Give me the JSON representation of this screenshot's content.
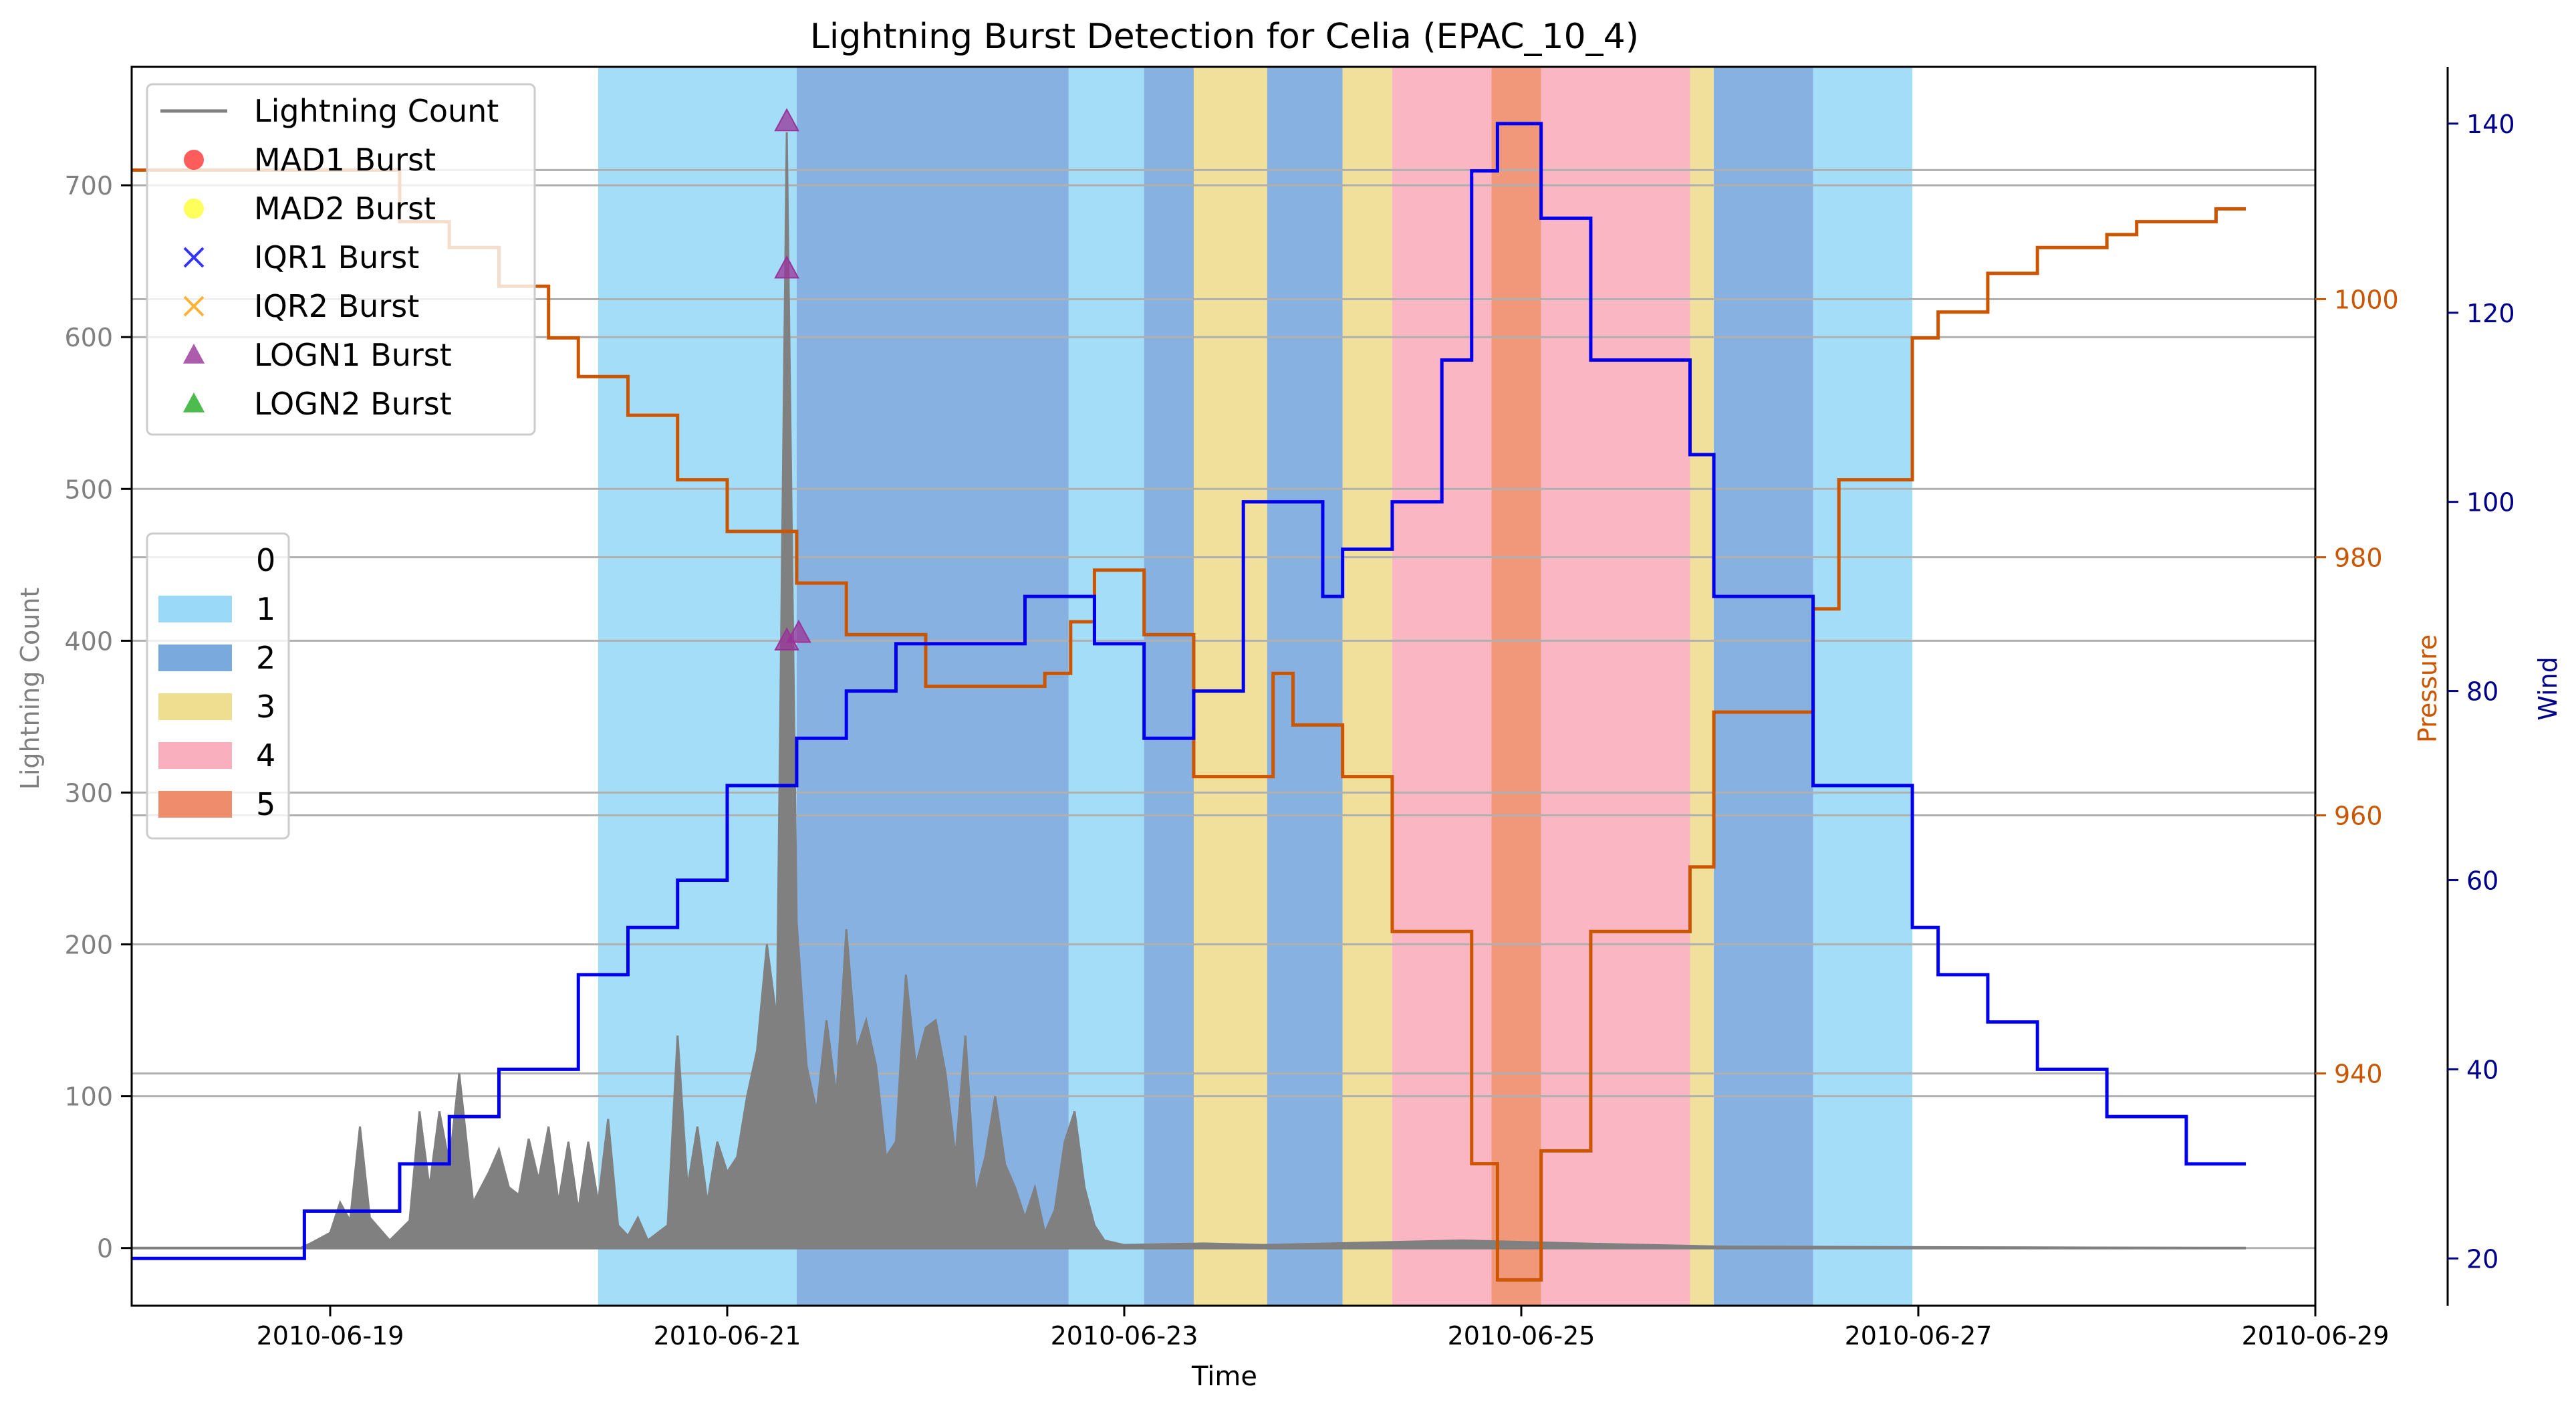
{
  "chart_data": {
    "type": "line",
    "title": "Lightning Burst Detection for Celia (EPAC_10_4)",
    "xlabel": "Time",
    "ylabel_left": "Lightning Count",
    "ylabel_pressure": "Pressure",
    "ylabel_wind": "Wind",
    "x_ticks": [
      "2010-06-19",
      "2010-06-21",
      "2010-06-23",
      "2010-06-25",
      "2010-06-27",
      "2010-06-29"
    ],
    "y_left_ticks": [
      0,
      100,
      200,
      300,
      400,
      500,
      600,
      700
    ],
    "pressure_ticks": [
      940,
      960,
      980,
      1000
    ],
    "wind_ticks": [
      20,
      40,
      60,
      80,
      100,
      120,
      140
    ],
    "ylim_left": [
      -38,
      778
    ],
    "ylim_pressure": [
      922,
      1018
    ],
    "ylim_wind": [
      15,
      146
    ],
    "x_start": "2010-06-18 12:00",
    "xlim_days": [
      0.0,
      11.0
    ],
    "colors": {
      "lightning": "#808080",
      "pressure": "#cc5500",
      "wind": "#0000ee",
      "pressure_axis": "#cc5500",
      "wind_axis": "#00008b",
      "grid": "#b0b0b0"
    },
    "legend_series": [
      {
        "name": "Lightning Count",
        "kind": "line",
        "color": "#808080"
      },
      {
        "name": "MAD1 Burst",
        "kind": "circle",
        "color": "#ff3333"
      },
      {
        "name": "MAD2 Burst",
        "kind": "circle",
        "color": "#ffff33"
      },
      {
        "name": "IQR1 Burst",
        "kind": "x",
        "color": "#3333ff"
      },
      {
        "name": "IQR2 Burst",
        "kind": "x",
        "color": "#ffb233"
      },
      {
        "name": "LOGN1 Burst",
        "kind": "triangle",
        "color": "#993399"
      },
      {
        "name": "LOGN2 Burst",
        "kind": "triangle",
        "color": "#22aa22"
      }
    ],
    "category_legend": [
      {
        "label": "0",
        "color": "none"
      },
      {
        "label": "1",
        "color": "#9ad9f7"
      },
      {
        "label": "2",
        "color": "#7aa9dd"
      },
      {
        "label": "3",
        "color": "#efdd90"
      },
      {
        "label": "4",
        "color": "#f9afbd"
      },
      {
        "label": "5",
        "color": "#ef8c6c"
      }
    ],
    "category_spans": [
      {
        "cat": 1,
        "start": 2.35,
        "end": 3.35
      },
      {
        "cat": 2,
        "start": 3.35,
        "end": 4.72
      },
      {
        "cat": 1,
        "start": 4.72,
        "end": 5.1
      },
      {
        "cat": 2,
        "start": 5.1,
        "end": 5.35
      },
      {
        "cat": 3,
        "start": 5.35,
        "end": 5.72
      },
      {
        "cat": 2,
        "start": 5.72,
        "end": 6.1
      },
      {
        "cat": 3,
        "start": 6.1,
        "end": 6.35
      },
      {
        "cat": 4,
        "start": 6.35,
        "end": 6.85
      },
      {
        "cat": 5,
        "start": 6.85,
        "end": 7.1
      },
      {
        "cat": 4,
        "start": 7.1,
        "end": 7.85
      },
      {
        "cat": 3,
        "start": 7.85,
        "end": 7.97
      },
      {
        "cat": 2,
        "start": 7.97,
        "end": 8.47
      },
      {
        "cat": 1,
        "start": 8.47,
        "end": 8.97
      }
    ],
    "pressure_series": {
      "name": "Pressure",
      "steps": [
        [
          0.0,
          1010
        ],
        [
          1.35,
          1006
        ],
        [
          1.6,
          1004
        ],
        [
          1.85,
          1001
        ],
        [
          2.1,
          997
        ],
        [
          2.25,
          994
        ],
        [
          2.5,
          991
        ],
        [
          2.75,
          986
        ],
        [
          3.0,
          982
        ],
        [
          3.35,
          978
        ],
        [
          3.6,
          974
        ],
        [
          4.0,
          970
        ],
        [
          4.6,
          971
        ],
        [
          4.73,
          975
        ],
        [
          4.85,
          979
        ],
        [
          5.1,
          974
        ],
        [
          5.35,
          963
        ],
        [
          5.75,
          971
        ],
        [
          5.85,
          967
        ],
        [
          6.1,
          963
        ],
        [
          6.35,
          951
        ],
        [
          6.75,
          933
        ],
        [
          6.88,
          924
        ],
        [
          7.1,
          934
        ],
        [
          7.35,
          951
        ],
        [
          7.85,
          956
        ],
        [
          7.97,
          968
        ],
        [
          8.47,
          976
        ],
        [
          8.6,
          986
        ],
        [
          8.97,
          997
        ],
        [
          9.1,
          999
        ],
        [
          9.35,
          1002
        ],
        [
          9.6,
          1004
        ],
        [
          9.95,
          1005
        ],
        [
          10.1,
          1006
        ],
        [
          10.5,
          1007
        ],
        [
          10.65,
          1007
        ]
      ],
      "end": 10.65
    },
    "wind_series": {
      "name": "Wind",
      "steps": [
        [
          0.0,
          20
        ],
        [
          0.87,
          25
        ],
        [
          1.35,
          30
        ],
        [
          1.6,
          35
        ],
        [
          1.85,
          40
        ],
        [
          2.25,
          50
        ],
        [
          2.5,
          55
        ],
        [
          2.75,
          60
        ],
        [
          3.0,
          70
        ],
        [
          3.35,
          75
        ],
        [
          3.6,
          80
        ],
        [
          3.85,
          85
        ],
        [
          4.5,
          90
        ],
        [
          4.85,
          85
        ],
        [
          5.1,
          75
        ],
        [
          5.35,
          80
        ],
        [
          5.6,
          100
        ],
        [
          6.0,
          90
        ],
        [
          6.1,
          95
        ],
        [
          6.35,
          100
        ],
        [
          6.6,
          115
        ],
        [
          6.75,
          135
        ],
        [
          6.88,
          140
        ],
        [
          7.1,
          130
        ],
        [
          7.35,
          115
        ],
        [
          7.85,
          105
        ],
        [
          7.97,
          90
        ],
        [
          8.47,
          85
        ],
        [
          8.47,
          70
        ],
        [
          8.97,
          55
        ],
        [
          9.1,
          50
        ],
        [
          9.35,
          45
        ],
        [
          9.6,
          40
        ],
        [
          9.95,
          35
        ],
        [
          10.35,
          30
        ],
        [
          10.65,
          30
        ]
      ],
      "end": 10.65
    },
    "lightning_series": {
      "name": "Lightning Count",
      "points": [
        [
          0.0,
          0
        ],
        [
          0.85,
          0
        ],
        [
          0.9,
          3
        ],
        [
          1.0,
          10
        ],
        [
          1.05,
          30
        ],
        [
          1.1,
          18
        ],
        [
          1.15,
          80
        ],
        [
          1.2,
          20
        ],
        [
          1.3,
          5
        ],
        [
          1.4,
          18
        ],
        [
          1.45,
          90
        ],
        [
          1.5,
          40
        ],
        [
          1.55,
          90
        ],
        [
          1.6,
          55
        ],
        [
          1.65,
          115
        ],
        [
          1.72,
          30
        ],
        [
          1.8,
          50
        ],
        [
          1.85,
          65
        ],
        [
          1.9,
          40
        ],
        [
          1.95,
          35
        ],
        [
          2.0,
          72
        ],
        [
          2.05,
          45
        ],
        [
          2.1,
          80
        ],
        [
          2.15,
          30
        ],
        [
          2.2,
          70
        ],
        [
          2.25,
          25
        ],
        [
          2.3,
          70
        ],
        [
          2.35,
          30
        ],
        [
          2.4,
          85
        ],
        [
          2.45,
          15
        ],
        [
          2.5,
          8
        ],
        [
          2.55,
          20
        ],
        [
          2.6,
          5
        ],
        [
          2.7,
          15
        ],
        [
          2.75,
          140
        ],
        [
          2.8,
          40
        ],
        [
          2.85,
          80
        ],
        [
          2.9,
          30
        ],
        [
          2.95,
          70
        ],
        [
          3.0,
          50
        ],
        [
          3.05,
          60
        ],
        [
          3.1,
          100
        ],
        [
          3.15,
          130
        ],
        [
          3.2,
          200
        ],
        [
          3.25,
          150
        ],
        [
          3.3,
          735
        ],
        [
          3.35,
          215
        ],
        [
          3.4,
          120
        ],
        [
          3.45,
          90
        ],
        [
          3.5,
          150
        ],
        [
          3.55,
          100
        ],
        [
          3.6,
          210
        ],
        [
          3.65,
          130
        ],
        [
          3.7,
          150
        ],
        [
          3.75,
          120
        ],
        [
          3.8,
          60
        ],
        [
          3.85,
          70
        ],
        [
          3.9,
          180
        ],
        [
          3.95,
          120
        ],
        [
          4.0,
          145
        ],
        [
          4.05,
          150
        ],
        [
          4.1,
          115
        ],
        [
          4.15,
          60
        ],
        [
          4.2,
          140
        ],
        [
          4.25,
          35
        ],
        [
          4.3,
          60
        ],
        [
          4.35,
          100
        ],
        [
          4.4,
          55
        ],
        [
          4.45,
          40
        ],
        [
          4.5,
          20
        ],
        [
          4.55,
          40
        ],
        [
          4.6,
          10
        ],
        [
          4.65,
          25
        ],
        [
          4.7,
          70
        ],
        [
          4.75,
          90
        ],
        [
          4.8,
          40
        ],
        [
          4.85,
          15
        ],
        [
          4.9,
          5
        ],
        [
          5.0,
          2
        ],
        [
          5.4,
          3
        ],
        [
          5.7,
          2
        ],
        [
          6.7,
          5
        ],
        [
          7.3,
          3
        ],
        [
          8.0,
          1
        ],
        [
          10.65,
          0
        ]
      ]
    },
    "burst_markers": [
      {
        "series": "LOGN1 Burst",
        "x": 3.3,
        "y": 742
      },
      {
        "series": "LOGN1 Burst",
        "x": 3.3,
        "y": 645
      },
      {
        "series": "LOGN1 Burst",
        "x": 3.3,
        "y": 400
      },
      {
        "series": "LOGN1 Burst",
        "x": 3.36,
        "y": 405
      }
    ],
    "grid": true
  }
}
